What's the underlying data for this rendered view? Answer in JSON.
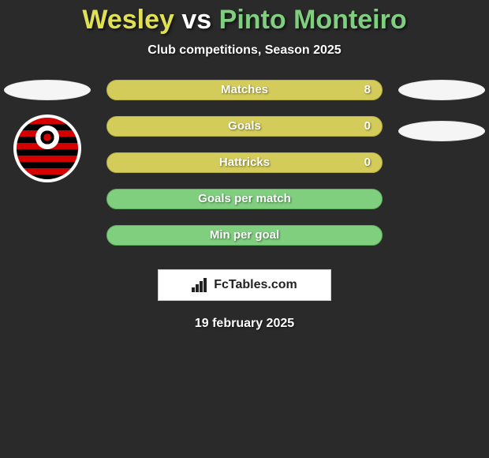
{
  "title": {
    "player1": "Wesley",
    "vs": "vs",
    "player2": "Pinto Monteiro",
    "color_player1": "#e0e055",
    "color_vs": "#ffffff",
    "color_player2": "#7fcf7f"
  },
  "subtitle": "Club competitions, Season 2025",
  "bars_style": {
    "fill_p1": "#d4cc5a",
    "border_p1": "#b8b040",
    "fill_p2": "#7fcf7f",
    "border_p2": "#5fae5f"
  },
  "stats": [
    {
      "label": "Matches",
      "left_filled": true,
      "right_value": "8"
    },
    {
      "label": "Goals",
      "left_filled": true,
      "right_value": "0"
    },
    {
      "label": "Hattricks",
      "left_filled": true,
      "right_value": "0"
    },
    {
      "label": "Goals per match",
      "left_filled": false,
      "right_value": ""
    },
    {
      "label": "Min per goal",
      "left_filled": false,
      "right_value": ""
    }
  ],
  "logo_text": "FcTables.com",
  "date_text": "19 february 2025"
}
